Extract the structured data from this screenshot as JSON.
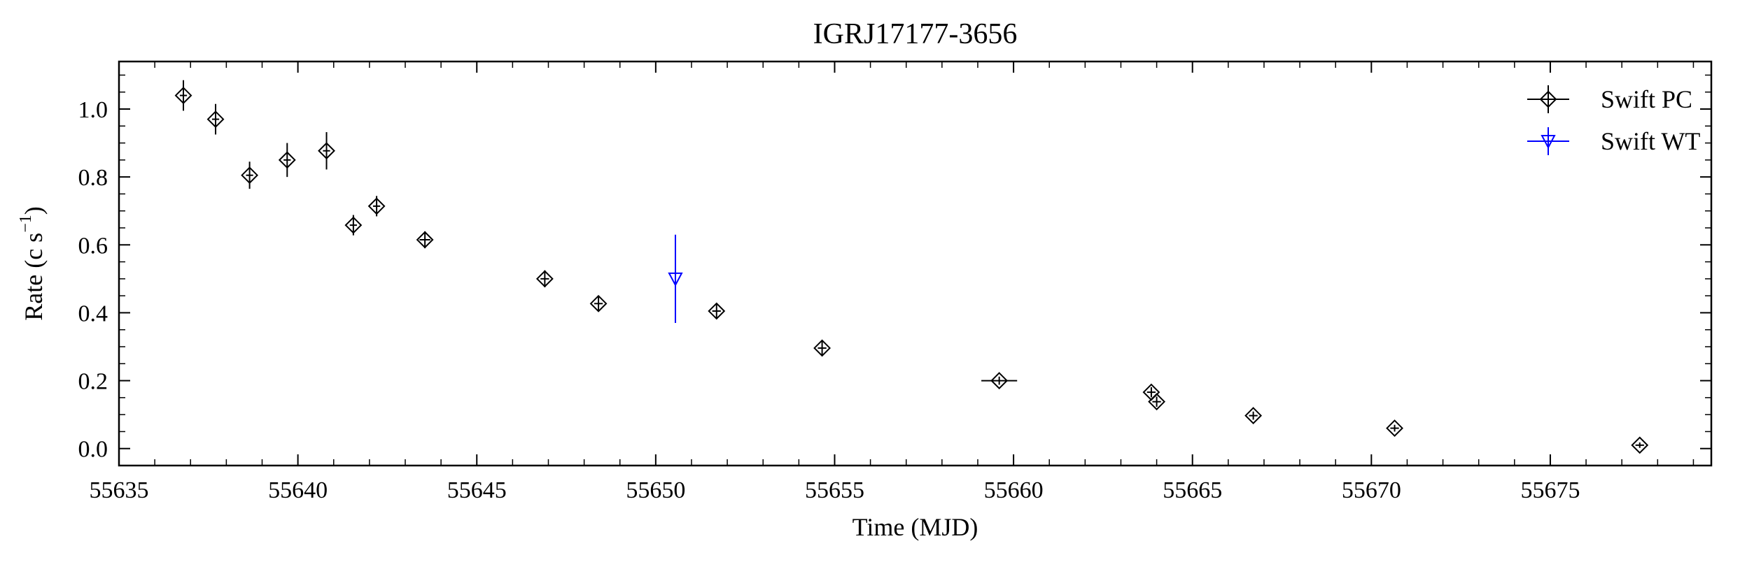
{
  "chart_data": {
    "type": "scatter",
    "title": "IGRJ17177-3656",
    "xlabel": "Time (MJD)",
    "ylabel_base": "Rate (c s",
    "ylabel_sup": "−1",
    "ylabel_close": ")",
    "xlim": [
      55635,
      55679.5
    ],
    "ylim": [
      -0.05,
      1.14
    ],
    "xticks": [
      55635,
      55640,
      55645,
      55650,
      55655,
      55660,
      55665,
      55670,
      55675
    ],
    "yticks": [
      0.0,
      0.2,
      0.4,
      0.6,
      0.8,
      1.0
    ],
    "ytick_labels": [
      "0.0",
      "0.2",
      "0.4",
      "0.6",
      "0.8",
      "1.0"
    ],
    "legend_position": "top-right",
    "series": [
      {
        "name": "Swift PC",
        "marker": "diamond",
        "color": "#000000",
        "points": [
          {
            "x": 55636.8,
            "y": 1.04,
            "xerr": 0.1,
            "yerr": 0.045
          },
          {
            "x": 55637.7,
            "y": 0.97,
            "xerr": 0.1,
            "yerr": 0.045
          },
          {
            "x": 55638.65,
            "y": 0.805,
            "xerr": 0.1,
            "yerr": 0.04
          },
          {
            "x": 55639.7,
            "y": 0.85,
            "xerr": 0.1,
            "yerr": 0.05
          },
          {
            "x": 55640.8,
            "y": 0.877,
            "xerr": 0.1,
            "yerr": 0.055
          },
          {
            "x": 55641.55,
            "y": 0.658,
            "xerr": 0.1,
            "yerr": 0.03
          },
          {
            "x": 55642.2,
            "y": 0.714,
            "xerr": 0.1,
            "yerr": 0.03
          },
          {
            "x": 55643.55,
            "y": 0.615,
            "xerr": 0.15,
            "yerr": 0.025
          },
          {
            "x": 55646.9,
            "y": 0.5,
            "xerr": 0.12,
            "yerr": 0.025
          },
          {
            "x": 55648.4,
            "y": 0.427,
            "xerr": 0.12,
            "yerr": 0.022
          },
          {
            "x": 55651.7,
            "y": 0.405,
            "xerr": 0.12,
            "yerr": 0.022
          },
          {
            "x": 55654.65,
            "y": 0.296,
            "xerr": 0.12,
            "yerr": 0.02
          },
          {
            "x": 55659.6,
            "y": 0.2,
            "xerr": 0.5,
            "yerr": 0.012
          },
          {
            "x": 55663.85,
            "y": 0.166,
            "xerr": 0.12,
            "yerr": 0.015
          },
          {
            "x": 55664.0,
            "y": 0.138,
            "xerr": 0.12,
            "yerr": 0.015
          },
          {
            "x": 55666.7,
            "y": 0.097,
            "xerr": 0.12,
            "yerr": 0.012
          },
          {
            "x": 55670.65,
            "y": 0.06,
            "xerr": 0.12,
            "yerr": 0.01
          },
          {
            "x": 55677.5,
            "y": 0.01,
            "xerr": 0.12,
            "yerr": 0.008
          }
        ]
      },
      {
        "name": "Swift WT",
        "marker": "triangle-down",
        "color": "#0000ff",
        "points": [
          {
            "x": 55650.55,
            "y": 0.5,
            "xerr": 0.02,
            "yerr": 0.13
          }
        ]
      }
    ]
  }
}
